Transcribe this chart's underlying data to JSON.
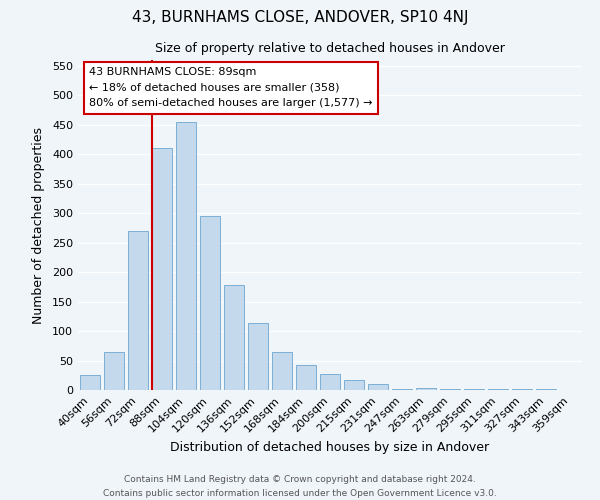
{
  "title": "43, BURNHAMS CLOSE, ANDOVER, SP10 4NJ",
  "subtitle": "Size of property relative to detached houses in Andover",
  "xlabel": "Distribution of detached houses by size in Andover",
  "ylabel": "Number of detached properties",
  "bar_labels": [
    "40sqm",
    "56sqm",
    "72sqm",
    "88sqm",
    "104sqm",
    "120sqm",
    "136sqm",
    "152sqm",
    "168sqm",
    "184sqm",
    "200sqm",
    "215sqm",
    "231sqm",
    "247sqm",
    "263sqm",
    "279sqm",
    "295sqm",
    "311sqm",
    "327sqm",
    "343sqm",
    "359sqm"
  ],
  "bar_heights": [
    25,
    65,
    270,
    410,
    455,
    295,
    178,
    113,
    65,
    43,
    27,
    17,
    11,
    2,
    4,
    2,
    2,
    1,
    1,
    1,
    0
  ],
  "bar_color": "#c5d9ec",
  "bar_edge_color": "#7bafd4",
  "property_line_color": "#cc0000",
  "property_line_bar_index": 3,
  "ylim": [
    0,
    560
  ],
  "yticks": [
    0,
    50,
    100,
    150,
    200,
    250,
    300,
    350,
    400,
    450,
    500,
    550
  ],
  "annotation_line1": "43 BURNHAMS CLOSE: 89sqm",
  "annotation_line2": "← 18% of detached houses are smaller (358)",
  "annotation_line3": "80% of semi-detached houses are larger (1,577) →",
  "annotation_box_color": "#ffffff",
  "annotation_box_edge": "#cc0000",
  "bg_color": "#f0f5fa",
  "grid_color": "#ffffff",
  "footer_line1": "Contains HM Land Registry data © Crown copyright and database right 2024.",
  "footer_line2": "Contains public sector information licensed under the Open Government Licence v3.0."
}
